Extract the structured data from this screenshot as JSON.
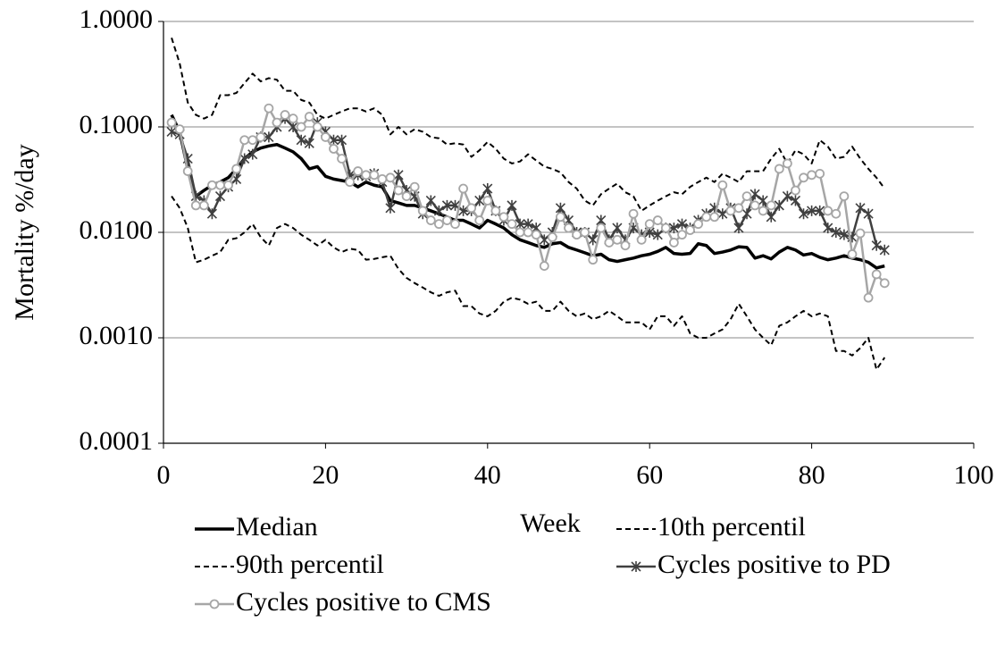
{
  "chart_data": {
    "type": "line",
    "y_label": "Mortality %/day",
    "x_label": "Week",
    "log_y": true,
    "grid": true,
    "legend": "bottom",
    "xlim": [
      0,
      100
    ],
    "xticks": [
      0,
      20,
      40,
      60,
      80,
      100
    ],
    "ylim": [
      0.0001,
      1
    ],
    "yticks": [
      {
        "value": 0.0001,
        "label": "0.0001"
      },
      {
        "value": 0.001,
        "label": "0.0010"
      },
      {
        "value": 0.01,
        "label": "0.0100"
      },
      {
        "value": 0.1,
        "label": "0.1000"
      },
      {
        "value": 1,
        "label": "1.0000"
      }
    ],
    "x": [
      1,
      2,
      3,
      4,
      5,
      6,
      7,
      8,
      9,
      10,
      11,
      12,
      13,
      14,
      15,
      16,
      17,
      18,
      19,
      20,
      21,
      22,
      23,
      24,
      25,
      26,
      27,
      28,
      29,
      30,
      31,
      32,
      33,
      34,
      35,
      36,
      37,
      38,
      39,
      40,
      41,
      42,
      43,
      44,
      45,
      46,
      47,
      48,
      49,
      50,
      51,
      52,
      53,
      54,
      55,
      56,
      57,
      58,
      59,
      60,
      61,
      62,
      63,
      64,
      65,
      66,
      67,
      68,
      69,
      70,
      71,
      72,
      73,
      74,
      75,
      76,
      77,
      78,
      79,
      80,
      81,
      82,
      83,
      84,
      85,
      86,
      87,
      88,
      89
    ],
    "series": [
      {
        "name": "Median",
        "color": "#000000",
        "width": 3.5,
        "dash": false,
        "marker": "none",
        "values": [
          0.13,
          0.09,
          0.04,
          0.022,
          0.025,
          0.028,
          0.03,
          0.033,
          0.04,
          0.05,
          0.058,
          0.063,
          0.066,
          0.068,
          0.063,
          0.058,
          0.05,
          0.04,
          0.042,
          0.034,
          0.032,
          0.031,
          0.03,
          0.027,
          0.03,
          0.028,
          0.027,
          0.02,
          0.019,
          0.018,
          0.018,
          0.017,
          0.016,
          0.015,
          0.014,
          0.013,
          0.013,
          0.012,
          0.011,
          0.013,
          0.012,
          0.011,
          0.0095,
          0.0085,
          0.008,
          0.0075,
          0.0072,
          0.0078,
          0.008,
          0.0072,
          0.0068,
          0.0064,
          0.006,
          0.0062,
          0.0055,
          0.0053,
          0.0055,
          0.0057,
          0.006,
          0.0062,
          0.0066,
          0.0072,
          0.0063,
          0.0062,
          0.0063,
          0.0078,
          0.0075,
          0.0063,
          0.0065,
          0.0068,
          0.0073,
          0.0072,
          0.0057,
          0.006,
          0.0056,
          0.0065,
          0.0072,
          0.0068,
          0.0061,
          0.0063,
          0.0058,
          0.0055,
          0.0057,
          0.006,
          0.0057,
          0.0055,
          0.0052,
          0.0046,
          0.0048
        ]
      },
      {
        "name": "10th percentil",
        "color": "#000000",
        "width": 2,
        "dash": true,
        "marker": "none",
        "values": [
          0.022,
          0.017,
          0.011,
          0.0052,
          0.0055,
          0.006,
          0.0065,
          0.0085,
          0.0088,
          0.01,
          0.012,
          0.009,
          0.0075,
          0.011,
          0.012,
          0.011,
          0.0095,
          0.0085,
          0.0075,
          0.0085,
          0.0072,
          0.0065,
          0.007,
          0.0068,
          0.0055,
          0.0056,
          0.0058,
          0.006,
          0.0045,
          0.0037,
          0.0033,
          0.003,
          0.0027,
          0.0025,
          0.0027,
          0.0028,
          0.002,
          0.002,
          0.0017,
          0.0016,
          0.0018,
          0.0022,
          0.0024,
          0.0023,
          0.0021,
          0.0022,
          0.0018,
          0.0018,
          0.0022,
          0.0018,
          0.0016,
          0.0017,
          0.0015,
          0.0016,
          0.0018,
          0.0016,
          0.0014,
          0.0014,
          0.0014,
          0.0012,
          0.0016,
          0.0016,
          0.0013,
          0.0016,
          0.0011,
          0.001,
          0.001,
          0.0011,
          0.0012,
          0.0015,
          0.0021,
          0.0016,
          0.0012,
          0.001,
          0.00085,
          0.0013,
          0.0014,
          0.0016,
          0.0018,
          0.0016,
          0.0017,
          0.0016,
          0.00075,
          0.00075,
          0.00068,
          0.0008,
          0.001,
          0.0005,
          0.00065
        ]
      },
      {
        "name": "90th percentil",
        "color": "#000000",
        "width": 2,
        "dash": true,
        "marker": "none",
        "values": [
          0.7,
          0.4,
          0.17,
          0.13,
          0.12,
          0.13,
          0.2,
          0.2,
          0.21,
          0.26,
          0.32,
          0.27,
          0.29,
          0.28,
          0.22,
          0.22,
          0.18,
          0.17,
          0.13,
          0.12,
          0.13,
          0.14,
          0.15,
          0.15,
          0.14,
          0.15,
          0.13,
          0.085,
          0.1,
          0.085,
          0.095,
          0.09,
          0.08,
          0.078,
          0.068,
          0.07,
          0.068,
          0.052,
          0.06,
          0.072,
          0.062,
          0.05,
          0.045,
          0.047,
          0.055,
          0.048,
          0.042,
          0.04,
          0.037,
          0.03,
          0.026,
          0.02,
          0.018,
          0.023,
          0.026,
          0.029,
          0.024,
          0.022,
          0.016,
          0.018,
          0.02,
          0.022,
          0.024,
          0.023,
          0.027,
          0.03,
          0.033,
          0.03,
          0.036,
          0.033,
          0.03,
          0.038,
          0.038,
          0.038,
          0.05,
          0.062,
          0.045,
          0.06,
          0.055,
          0.045,
          0.075,
          0.065,
          0.05,
          0.052,
          0.065,
          0.05,
          0.04,
          0.033,
          0.026
        ]
      },
      {
        "name": "Cycles positive to PD",
        "color": "#404040",
        "width": 2.5,
        "dash": false,
        "marker": "asterisk",
        "values": [
          0.09,
          0.085,
          0.05,
          0.022,
          0.02,
          0.015,
          0.022,
          0.027,
          0.032,
          0.05,
          0.055,
          0.08,
          0.08,
          0.1,
          0.12,
          0.1,
          0.075,
          0.07,
          0.11,
          0.09,
          0.075,
          0.075,
          0.035,
          0.035,
          0.034,
          0.036,
          0.03,
          0.017,
          0.035,
          0.025,
          0.022,
          0.015,
          0.02,
          0.016,
          0.018,
          0.018,
          0.016,
          0.016,
          0.02,
          0.026,
          0.016,
          0.013,
          0.018,
          0.012,
          0.012,
          0.011,
          0.0085,
          0.01,
          0.017,
          0.013,
          0.01,
          0.01,
          0.0085,
          0.013,
          0.0085,
          0.011,
          0.0085,
          0.011,
          0.0095,
          0.01,
          0.0095,
          0.011,
          0.011,
          0.012,
          0.011,
          0.013,
          0.015,
          0.017,
          0.015,
          0.017,
          0.011,
          0.015,
          0.023,
          0.02,
          0.014,
          0.018,
          0.022,
          0.02,
          0.015,
          0.016,
          0.016,
          0.011,
          0.01,
          0.0095,
          0.009,
          0.017,
          0.015,
          0.0075,
          0.0068
        ]
      },
      {
        "name": "Cycles positive to CMS",
        "color": "#a6a6a6",
        "width": 2.5,
        "dash": false,
        "marker": "circle",
        "values": [
          0.11,
          0.095,
          0.038,
          0.018,
          0.018,
          0.028,
          0.028,
          0.028,
          0.04,
          0.075,
          0.075,
          0.08,
          0.15,
          0.11,
          0.13,
          0.12,
          0.1,
          0.125,
          0.1,
          0.08,
          0.062,
          0.05,
          0.03,
          0.038,
          0.035,
          0.035,
          0.032,
          0.033,
          0.025,
          0.022,
          0.027,
          0.016,
          0.013,
          0.012,
          0.013,
          0.012,
          0.026,
          0.017,
          0.013,
          0.02,
          0.016,
          0.014,
          0.012,
          0.01,
          0.01,
          0.0095,
          0.0048,
          0.009,
          0.014,
          0.011,
          0.0095,
          0.01,
          0.0055,
          0.011,
          0.008,
          0.0085,
          0.0075,
          0.015,
          0.0085,
          0.012,
          0.013,
          0.011,
          0.008,
          0.0095,
          0.0105,
          0.012,
          0.014,
          0.014,
          0.028,
          0.016,
          0.017,
          0.022,
          0.018,
          0.016,
          0.018,
          0.04,
          0.045,
          0.025,
          0.033,
          0.035,
          0.036,
          0.016,
          0.015,
          0.022,
          0.0062,
          0.0098,
          0.0024,
          0.004,
          0.0033
        ]
      }
    ]
  }
}
